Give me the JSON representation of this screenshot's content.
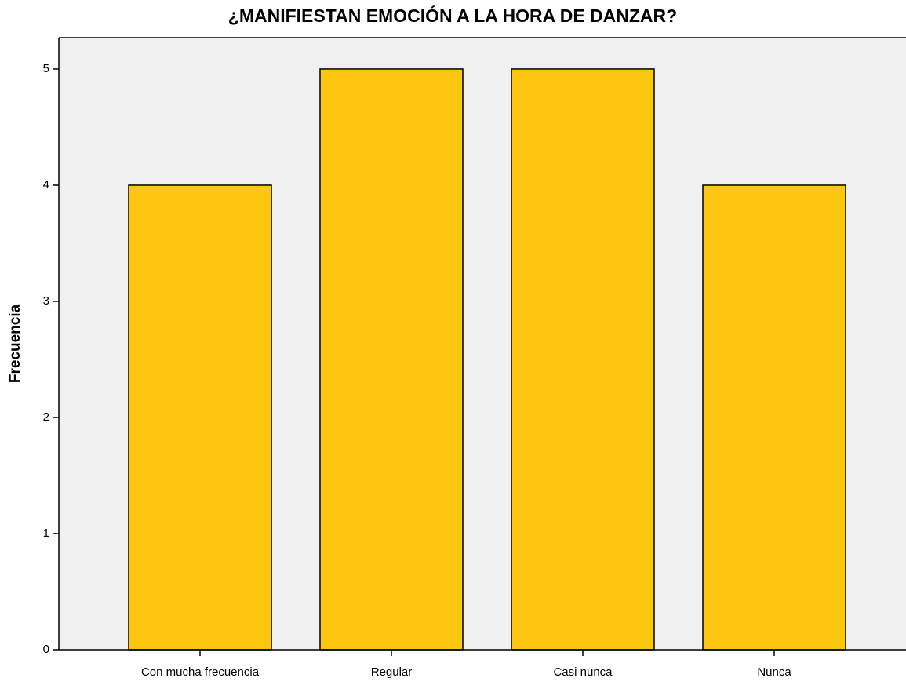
{
  "chart_data": {
    "type": "bar",
    "title": "¿MANIFIESTAN EMOCIÓN A LA HORA DE DANZAR?",
    "y_label": "Frecuencia",
    "categories": [
      "Con mucha frecuencia",
      "Regular",
      "Casi nunca",
      "Nunca"
    ],
    "values": [
      4,
      5,
      5,
      4
    ],
    "color": "#fdc70f",
    "ylim": [
      0,
      5.27
    ],
    "yticks": [
      0,
      1,
      2,
      3,
      4,
      5
    ],
    "grid": false
  }
}
